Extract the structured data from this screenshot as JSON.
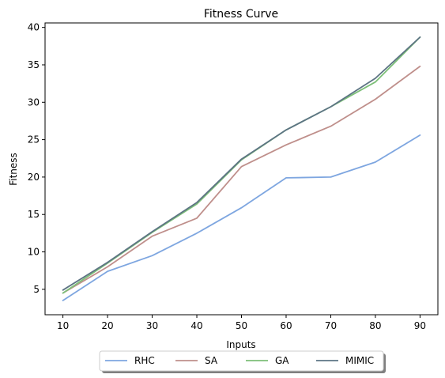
{
  "chart_data": {
    "type": "line",
    "title": "Fitness Curve",
    "xlabel": "Inputs",
    "ylabel": "Fitness",
    "x": [
      10,
      20,
      30,
      40,
      50,
      60,
      70,
      80,
      90
    ],
    "xlim": [
      6,
      94
    ],
    "ylim": [
      1.6,
      40.6
    ],
    "xticks": [
      "10",
      "20",
      "30",
      "40",
      "50",
      "60",
      "70",
      "80",
      "90"
    ],
    "yticks": [
      "5",
      "10",
      "15",
      "20",
      "25",
      "30",
      "35",
      "40"
    ],
    "grid": false,
    "legend_position": "bottom-center, outside plot, 4 columns, shadowed",
    "series": [
      {
        "name": "RHC",
        "color": "#7ea6e0",
        "values": [
          3.5,
          7.4,
          9.5,
          12.5,
          15.9,
          19.9,
          20.0,
          22.0,
          25.6
        ]
      },
      {
        "name": "SA",
        "color": "#bf8f8b",
        "values": [
          4.5,
          8.0,
          12.1,
          14.5,
          21.4,
          24.3,
          26.8,
          30.4,
          34.8
        ]
      },
      {
        "name": "GA",
        "color": "#7dbf78",
        "values": [
          4.5,
          8.5,
          12.6,
          16.4,
          22.3,
          26.3,
          29.4,
          32.7,
          38.7
        ]
      },
      {
        "name": "MIMIC",
        "color": "#5d7484",
        "values": [
          4.9,
          8.6,
          12.7,
          16.6,
          22.4,
          26.3,
          29.4,
          33.2,
          38.7
        ]
      }
    ]
  }
}
